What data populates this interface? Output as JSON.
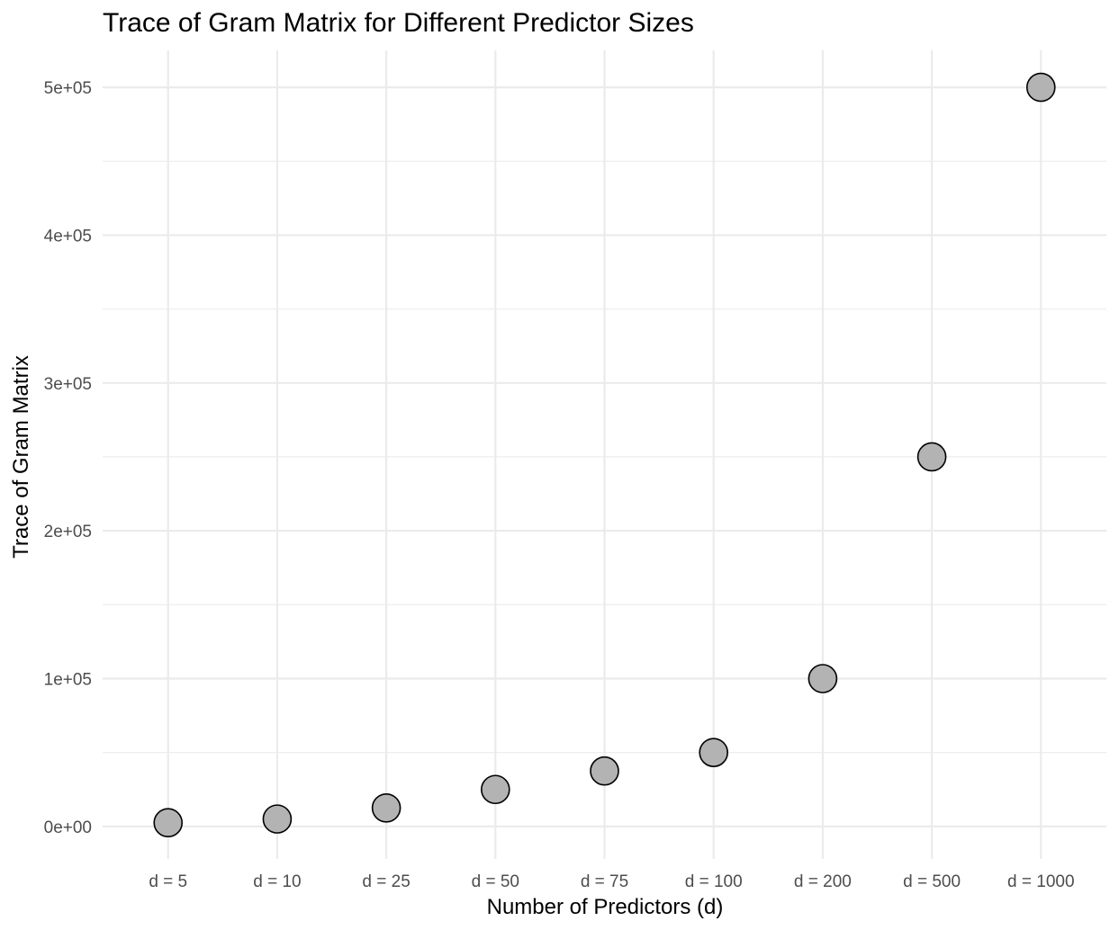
{
  "chart_data": {
    "type": "scatter",
    "title": "Trace of Gram Matrix for Different Predictor Sizes",
    "xlabel": "Number of Predictors (d)",
    "ylabel": "Trace of Gram Matrix",
    "categories": [
      "d = 5",
      "d = 10",
      "d = 25",
      "d = 50",
      "d = 75",
      "d = 100",
      "d = 200",
      "d = 500",
      "d = 1000"
    ],
    "values": [
      2500,
      5000,
      12500,
      25000,
      37500,
      50000,
      100000,
      250000,
      500000
    ],
    "ylim": [
      -22000,
      525000
    ],
    "yticks": [
      0,
      100000,
      200000,
      300000,
      400000,
      500000
    ],
    "ytick_labels": [
      "0e+00",
      "1e+05",
      "2e+05",
      "3e+05",
      "4e+05",
      "5e+05"
    ],
    "grid": true,
    "legend": "none",
    "point_fill": "#b3b3b3",
    "point_stroke": "#000000"
  }
}
